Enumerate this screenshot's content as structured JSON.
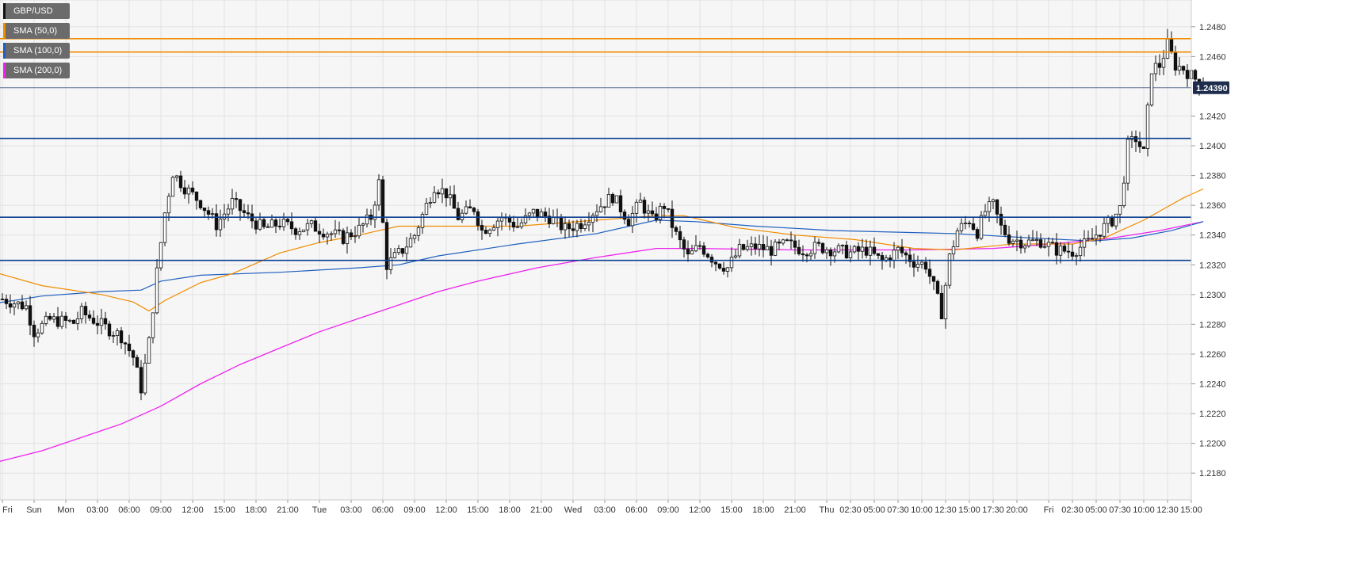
{
  "chart_data": {
    "type": "candlestick",
    "symbol": "GBP/USD",
    "ylim": [
      1.2162,
      1.2498
    ],
    "y_ticks": [
      1.218,
      1.22,
      1.222,
      1.224,
      1.226,
      1.228,
      1.23,
      1.232,
      1.234,
      1.236,
      1.238,
      1.24,
      1.242,
      1.246,
      1.248
    ],
    "y_tick_labels": [
      "1.2180",
      "1.2200",
      "1.2220",
      "1.2240",
      "1.2260",
      "1.2280",
      "1.2300",
      "1.2320",
      "1.2340",
      "1.2360",
      "1.2380",
      "1.2400",
      "1.2420",
      "1.2460",
      "1.2480"
    ],
    "current_price": 1.2439,
    "current_price_label": "1.24390",
    "x_ticks": [
      {
        "i": 0,
        "label": "Fri"
      },
      {
        "i": 8,
        "label": "Sun"
      },
      {
        "i": 16,
        "label": "Mon"
      },
      {
        "i": 24,
        "label": "03:00"
      },
      {
        "i": 32,
        "label": "06:00"
      },
      {
        "i": 40,
        "label": "09:00"
      },
      {
        "i": 48,
        "label": "12:00"
      },
      {
        "i": 56,
        "label": "15:00"
      },
      {
        "i": 64,
        "label": "18:00"
      },
      {
        "i": 72,
        "label": "21:00"
      },
      {
        "i": 80,
        "label": "Tue"
      },
      {
        "i": 88,
        "label": "03:00"
      },
      {
        "i": 96,
        "label": "06:00"
      },
      {
        "i": 104,
        "label": "09:00"
      },
      {
        "i": 112,
        "label": "12:00"
      },
      {
        "i": 120,
        "label": "15:00"
      },
      {
        "i": 128,
        "label": "18:00"
      },
      {
        "i": 136,
        "label": "21:00"
      },
      {
        "i": 144,
        "label": "Wed"
      },
      {
        "i": 152,
        "label": "03:00"
      },
      {
        "i": 160,
        "label": "06:00"
      },
      {
        "i": 168,
        "label": "09:00"
      },
      {
        "i": 176,
        "label": "12:00"
      },
      {
        "i": 184,
        "label": "15:00"
      },
      {
        "i": 192,
        "label": "18:00"
      },
      {
        "i": 200,
        "label": "21:00"
      },
      {
        "i": 208,
        "label": "Thu"
      },
      {
        "i": 214,
        "label": "02:30"
      },
      {
        "i": 220,
        "label": "05:00"
      },
      {
        "i": 226,
        "label": "07:30"
      },
      {
        "i": 232,
        "label": "10:00"
      },
      {
        "i": 238,
        "label": "12:30"
      },
      {
        "i": 244,
        "label": "15:00"
      },
      {
        "i": 250,
        "label": "17:30"
      },
      {
        "i": 256,
        "label": "20:00"
      },
      {
        "i": 264,
        "label": "Fri"
      },
      {
        "i": 270,
        "label": "02:30"
      },
      {
        "i": 276,
        "label": "05:00"
      },
      {
        "i": 282,
        "label": "07:30"
      },
      {
        "i": 288,
        "label": "10:00"
      },
      {
        "i": 294,
        "label": "12:30"
      },
      {
        "i": 300,
        "label": "15:00"
      }
    ],
    "horizontal_levels": [
      {
        "value": 1.2472,
        "color": "#f08c00"
      },
      {
        "value": 1.2463,
        "color": "#f08c00"
      },
      {
        "value": 1.2405,
        "color": "#0b3d91"
      },
      {
        "value": 1.2352,
        "color": "#0b3d91"
      },
      {
        "value": 1.2323,
        "color": "#0b3d91"
      }
    ],
    "keypoints": [
      {
        "i": 0,
        "p": 1.2297
      },
      {
        "i": 6,
        "p": 1.2292
      },
      {
        "i": 8,
        "p": 1.2275
      },
      {
        "i": 12,
        "p": 1.2283
      },
      {
        "i": 18,
        "p": 1.2281
      },
      {
        "i": 20,
        "p": 1.2288
      },
      {
        "i": 26,
        "p": 1.2278
      },
      {
        "i": 30,
        "p": 1.2272
      },
      {
        "i": 33,
        "p": 1.2258
      },
      {
        "i": 35,
        "p": 1.2237
      },
      {
        "i": 37,
        "p": 1.2268
      },
      {
        "i": 39,
        "p": 1.2315
      },
      {
        "i": 41,
        "p": 1.2355
      },
      {
        "i": 43,
        "p": 1.2382
      },
      {
        "i": 46,
        "p": 1.2372
      },
      {
        "i": 50,
        "p": 1.2362
      },
      {
        "i": 54,
        "p": 1.2347
      },
      {
        "i": 58,
        "p": 1.2362
      },
      {
        "i": 62,
        "p": 1.2352
      },
      {
        "i": 66,
        "p": 1.2344
      },
      {
        "i": 70,
        "p": 1.2348
      },
      {
        "i": 74,
        "p": 1.2344
      },
      {
        "i": 78,
        "p": 1.2346
      },
      {
        "i": 82,
        "p": 1.2342
      },
      {
        "i": 86,
        "p": 1.2338
      },
      {
        "i": 90,
        "p": 1.2344
      },
      {
        "i": 93,
        "p": 1.2352
      },
      {
        "i": 95,
        "p": 1.2375
      },
      {
        "i": 97,
        "p": 1.232
      },
      {
        "i": 101,
        "p": 1.233
      },
      {
        "i": 104,
        "p": 1.234
      },
      {
        "i": 107,
        "p": 1.236
      },
      {
        "i": 109,
        "p": 1.2373
      },
      {
        "i": 112,
        "p": 1.2368
      },
      {
        "i": 115,
        "p": 1.2352
      },
      {
        "i": 119,
        "p": 1.2358
      },
      {
        "i": 121,
        "p": 1.2343
      },
      {
        "i": 126,
        "p": 1.2352
      },
      {
        "i": 130,
        "p": 1.2346
      },
      {
        "i": 134,
        "p": 1.2355
      },
      {
        "i": 138,
        "p": 1.2352
      },
      {
        "i": 142,
        "p": 1.2344
      },
      {
        "i": 146,
        "p": 1.2348
      },
      {
        "i": 150,
        "p": 1.2358
      },
      {
        "i": 154,
        "p": 1.2366
      },
      {
        "i": 158,
        "p": 1.235
      },
      {
        "i": 161,
        "p": 1.2362
      },
      {
        "i": 164,
        "p": 1.235
      },
      {
        "i": 167,
        "p": 1.236
      },
      {
        "i": 170,
        "p": 1.234
      },
      {
        "i": 173,
        "p": 1.2325
      },
      {
        "i": 176,
        "p": 1.2333
      },
      {
        "i": 180,
        "p": 1.2322
      },
      {
        "i": 183,
        "p": 1.2318
      },
      {
        "i": 186,
        "p": 1.233
      },
      {
        "i": 190,
        "p": 1.2332
      },
      {
        "i": 194,
        "p": 1.233
      },
      {
        "i": 198,
        "p": 1.2334
      },
      {
        "i": 202,
        "p": 1.233
      },
      {
        "i": 206,
        "p": 1.2332
      },
      {
        "i": 210,
        "p": 1.233
      },
      {
        "i": 214,
        "p": 1.2328
      },
      {
        "i": 218,
        "p": 1.233
      },
      {
        "i": 222,
        "p": 1.2322
      },
      {
        "i": 226,
        "p": 1.233
      },
      {
        "i": 230,
        "p": 1.2322
      },
      {
        "i": 233,
        "p": 1.232
      },
      {
        "i": 235,
        "p": 1.2305
      },
      {
        "i": 237,
        "p": 1.2288
      },
      {
        "i": 239,
        "p": 1.2325
      },
      {
        "i": 241,
        "p": 1.2343
      },
      {
        "i": 244,
        "p": 1.235
      },
      {
        "i": 246,
        "p": 1.2342
      },
      {
        "i": 248,
        "p": 1.2356
      },
      {
        "i": 250,
        "p": 1.236
      },
      {
        "i": 252,
        "p": 1.2345
      },
      {
        "i": 254,
        "p": 1.2338
      },
      {
        "i": 258,
        "p": 1.2335
      },
      {
        "i": 262,
        "p": 1.2336
      },
      {
        "i": 266,
        "p": 1.233
      },
      {
        "i": 270,
        "p": 1.2329
      },
      {
        "i": 274,
        "p": 1.2335
      },
      {
        "i": 277,
        "p": 1.2343
      },
      {
        "i": 280,
        "p": 1.235
      },
      {
        "i": 282,
        "p": 1.2358
      },
      {
        "i": 284,
        "p": 1.24
      },
      {
        "i": 286,
        "p": 1.2405
      },
      {
        "i": 288,
        "p": 1.2395
      },
      {
        "i": 290,
        "p": 1.2452
      },
      {
        "i": 292,
        "p": 1.2454
      },
      {
        "i": 294,
        "p": 1.2468
      },
      {
        "i": 296,
        "p": 1.2454
      },
      {
        "i": 298,
        "p": 1.2452
      },
      {
        "i": 300,
        "p": 1.2447
      },
      {
        "i": 302,
        "p": 1.2443
      },
      {
        "i": 303,
        "p": 1.2439
      }
    ],
    "sma50_path": [
      {
        "i": -2,
        "p": 1.2315
      },
      {
        "i": 10,
        "p": 1.2306
      },
      {
        "i": 25,
        "p": 1.23
      },
      {
        "i": 33,
        "p": 1.2295
      },
      {
        "i": 37,
        "p": 1.2289
      },
      {
        "i": 41,
        "p": 1.2296
      },
      {
        "i": 50,
        "p": 1.2308
      },
      {
        "i": 58,
        "p": 1.2314
      },
      {
        "i": 70,
        "p": 1.2328
      },
      {
        "i": 80,
        "p": 1.2335
      },
      {
        "i": 90,
        "p": 1.234
      },
      {
        "i": 100,
        "p": 1.2346
      },
      {
        "i": 110,
        "p": 1.2346
      },
      {
        "i": 130,
        "p": 1.2346
      },
      {
        "i": 150,
        "p": 1.235
      },
      {
        "i": 165,
        "p": 1.2353
      },
      {
        "i": 172,
        "p": 1.2353
      },
      {
        "i": 185,
        "p": 1.2345
      },
      {
        "i": 200,
        "p": 1.234
      },
      {
        "i": 215,
        "p": 1.2337
      },
      {
        "i": 230,
        "p": 1.2331
      },
      {
        "i": 240,
        "p": 1.233
      },
      {
        "i": 255,
        "p": 1.2334
      },
      {
        "i": 270,
        "p": 1.2334
      },
      {
        "i": 278,
        "p": 1.2338
      },
      {
        "i": 288,
        "p": 1.235
      },
      {
        "i": 298,
        "p": 1.2365
      },
      {
        "i": 303,
        "p": 1.2371
      }
    ],
    "sma100_path": [
      {
        "i": -2,
        "p": 1.2294
      },
      {
        "i": 10,
        "p": 1.2299
      },
      {
        "i": 25,
        "p": 1.2302
      },
      {
        "i": 35,
        "p": 1.2303
      },
      {
        "i": 40,
        "p": 1.2309
      },
      {
        "i": 50,
        "p": 1.2313
      },
      {
        "i": 70,
        "p": 1.2315
      },
      {
        "i": 90,
        "p": 1.2318
      },
      {
        "i": 100,
        "p": 1.232
      },
      {
        "i": 110,
        "p": 1.2326
      },
      {
        "i": 130,
        "p": 1.2334
      },
      {
        "i": 150,
        "p": 1.2341
      },
      {
        "i": 165,
        "p": 1.235
      },
      {
        "i": 175,
        "p": 1.2349
      },
      {
        "i": 190,
        "p": 1.2346
      },
      {
        "i": 210,
        "p": 1.2343
      },
      {
        "i": 225,
        "p": 1.2342
      },
      {
        "i": 240,
        "p": 1.2341
      },
      {
        "i": 260,
        "p": 1.2338
      },
      {
        "i": 275,
        "p": 1.2336
      },
      {
        "i": 285,
        "p": 1.2338
      },
      {
        "i": 295,
        "p": 1.2343
      },
      {
        "i": 303,
        "p": 1.2349
      }
    ],
    "sma200_path": [
      {
        "i": -2,
        "p": 1.2187
      },
      {
        "i": 10,
        "p": 1.2195
      },
      {
        "i": 20,
        "p": 1.2204
      },
      {
        "i": 30,
        "p": 1.2213
      },
      {
        "i": 40,
        "p": 1.2225
      },
      {
        "i": 50,
        "p": 1.224
      },
      {
        "i": 60,
        "p": 1.2253
      },
      {
        "i": 70,
        "p": 1.2264
      },
      {
        "i": 80,
        "p": 1.2275
      },
      {
        "i": 90,
        "p": 1.2284
      },
      {
        "i": 100,
        "p": 1.2293
      },
      {
        "i": 110,
        "p": 1.2302
      },
      {
        "i": 120,
        "p": 1.2309
      },
      {
        "i": 135,
        "p": 1.2318
      },
      {
        "i": 150,
        "p": 1.2325
      },
      {
        "i": 165,
        "p": 1.2331
      },
      {
        "i": 175,
        "p": 1.2331
      },
      {
        "i": 200,
        "p": 1.233
      },
      {
        "i": 230,
        "p": 1.233
      },
      {
        "i": 250,
        "p": 1.2331
      },
      {
        "i": 265,
        "p": 1.2334
      },
      {
        "i": 280,
        "p": 1.2338
      },
      {
        "i": 292,
        "p": 1.2343
      },
      {
        "i": 303,
        "p": 1.2349
      }
    ]
  },
  "legend": [
    {
      "label": "GBP/USD",
      "color": "#111111"
    },
    {
      "label": "SMA (50,0)",
      "color": "#f08c00"
    },
    {
      "label": "SMA (100,0)",
      "color": "#1f5fbf"
    },
    {
      "label": "SMA (200,0)",
      "color": "#ee22ee"
    }
  ],
  "colors": {
    "plot_bg": "#f6f6f6",
    "grid": "#e2e2e2",
    "candle": "#111111",
    "price_tag_bg": "#1d2c4c",
    "sma50": "#f08c00",
    "sma100": "#1f5fbf",
    "sma200": "#ee22ee",
    "axis_text": "#333333"
  }
}
